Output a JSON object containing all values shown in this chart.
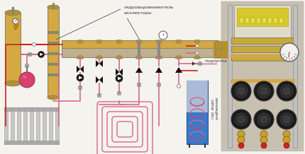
{
  "bg_color": "#f5f3ee",
  "label_gidro": "гидровыравниватель",
  "label_kollektory": "коллекторы",
  "label_podpitka": "подпитка",
  "label_gvs": "гор. водо-\nснабжение",
  "pipe_color": "#d4a843",
  "pipe_dark": "#b8902a",
  "pipe_gray": "#c0b090",
  "line_red": "#cc2222",
  "line_pink": "#d4698a",
  "line_dark": "#555555",
  "ball_color": "#d84070",
  "text_color": "#333333",
  "figsize": [
    4.3,
    2.18
  ],
  "dpi": 100
}
